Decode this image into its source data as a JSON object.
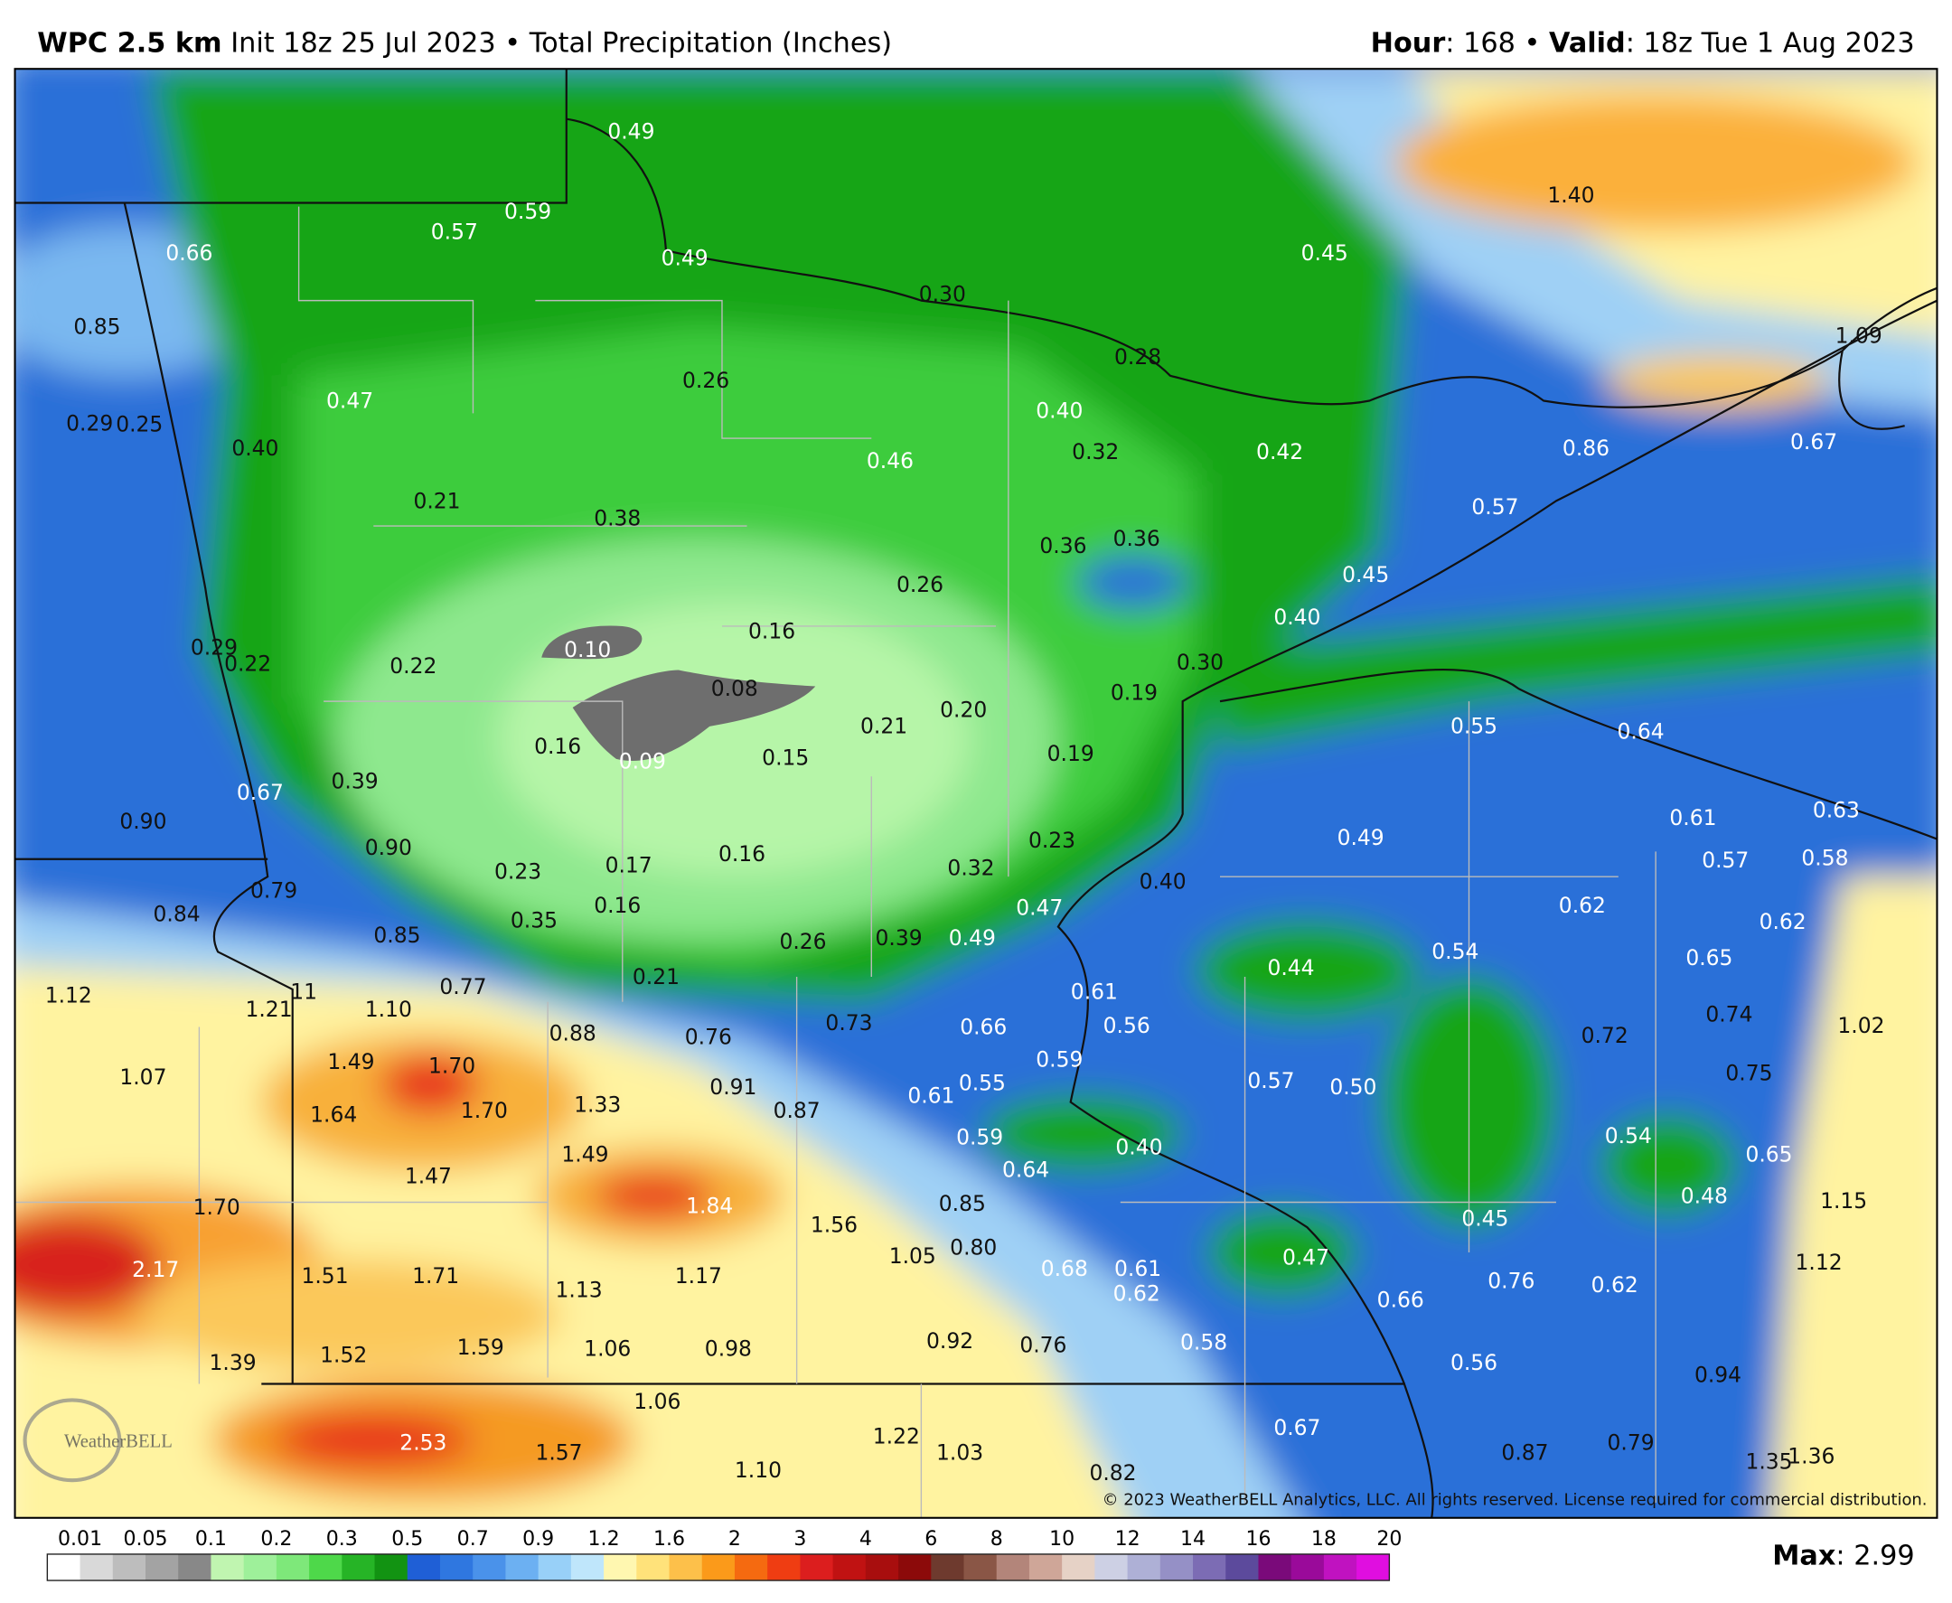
{
  "header": {
    "model": "WPC 2.5 km",
    "init": " Init 18z 25 Jul 2023 • Total Precipitation (Inches)",
    "hour_label": "Hour",
    "hour_value": ": 168 • ",
    "valid_label": "Valid",
    "valid_value": ": 18z Tue 1 Aug 2023"
  },
  "map_labels": [
    "0.49",
    "0.59",
    "0.57",
    "0.49",
    "0.66",
    "0.30",
    "1.40",
    "0.45",
    "0.85",
    "0.28",
    "1.09",
    "0.26",
    "0.47",
    "0.40",
    "0.29",
    "0.25",
    "0.40",
    "0.32",
    "0.42",
    "0.86",
    "0.67",
    "0.46",
    "0.21",
    "0.57",
    "0.38",
    "0.36",
    "0.36",
    "0.45",
    "0.26",
    "0.40",
    "0.16",
    "0.29",
    "0.10",
    "0.22",
    "0.22",
    "0.30",
    "0.08",
    "0.19",
    "0.20",
    "0.21",
    "0.55",
    "0.64",
    "0.16",
    "0.09",
    "0.15",
    "0.19",
    "0.67",
    "0.39",
    "0.90",
    "0.61",
    "0.63",
    "0.23",
    "0.49",
    "0.90",
    "0.57",
    "0.58",
    "0.17",
    "0.16",
    "0.32",
    "0.23",
    "0.40",
    "0.79",
    "0.84",
    "0.16",
    "0.47",
    "0.62",
    "0.62",
    "0.35",
    "0.85",
    "0.39",
    "0.49",
    "0.26",
    "0.54",
    "0.65",
    "0.44",
    "0.21",
    "1.12",
    "0.77",
    "11",
    "1.21",
    "1.10",
    "0.61",
    "0.74",
    "1.02",
    "0.88",
    "0.76",
    "0.73",
    "0.66",
    "0.56",
    "0.72",
    "1.49",
    "1.70",
    "0.59",
    "0.75",
    "1.07",
    "0.91",
    "0.55",
    "0.57",
    "0.50",
    "0.61",
    "1.64",
    "1.70",
    "1.33",
    "0.87",
    "0.59",
    "0.54",
    "0.40",
    "1.49",
    "0.65",
    "0.64",
    "1.47",
    "1.84",
    "1.70",
    "0.85",
    "0.48",
    "1.15",
    "0.45",
    "1.56",
    "0.80",
    "1.05",
    "0.47",
    "2.17",
    "1.51",
    "1.71",
    "1.17",
    "1.13",
    "0.68",
    "0.61",
    "0.62",
    "1.12",
    "0.76",
    "0.62",
    "0.66",
    "1.39",
    "1.52",
    "1.59",
    "1.06",
    "0.98",
    "0.92",
    "0.76",
    "0.58",
    "0.56",
    "0.94",
    "1.06",
    "2.53",
    "1.57",
    "1.22",
    "1.03",
    "1.10",
    "0.67",
    "0.87",
    "0.79",
    "1.35",
    "1.36",
    "0.82"
  ],
  "watermark": "WeatherBELL",
  "copyright": "© 2023 WeatherBELL Analytics, LLC. All rights reserved. License required for commercial distribution.",
  "legend": {
    "ticks": [
      0.01,
      0.05,
      0.1,
      0.2,
      0.3,
      0.5,
      0.7,
      0.9,
      1.2,
      1.6,
      2,
      3,
      4,
      6,
      8,
      10,
      12,
      14,
      16,
      18,
      20
    ],
    "colors": [
      "#ffffff",
      "#d9d9d9",
      "#bdbdbd",
      "#a3a3a3",
      "#888888",
      "#c0f5b0",
      "#9ef09a",
      "#7ee87a",
      "#4ed84a",
      "#26b426",
      "#129312",
      "#1f5fd6",
      "#2f77e0",
      "#4a92ea",
      "#6cb0f2",
      "#98d0f8",
      "#bfe6fb",
      "#fff7b0",
      "#ffe27a",
      "#fdc04a",
      "#fb9a1a",
      "#f56a10",
      "#ef3d12",
      "#dc1e1e",
      "#c01212",
      "#a80e0e",
      "#8c0a0a",
      "#6e3a2e",
      "#8a5646",
      "#b3857a",
      "#cfa698",
      "#e6d2c6",
      "#cdd0e4",
      "#aeb0d6",
      "#9590c6",
      "#7c6cb4",
      "#5c4a9c",
      "#7a0a7a",
      "#9a0a9a",
      "#c012c0",
      "#e00ee0"
    ]
  },
  "max": {
    "label": "Max",
    "value": ": 2.99"
  }
}
